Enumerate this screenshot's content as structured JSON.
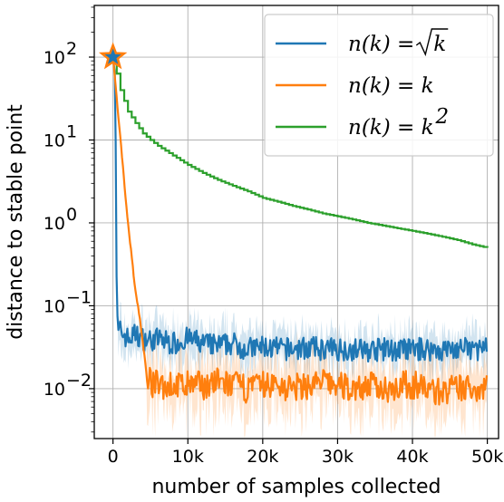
{
  "chart_data": {
    "type": "line",
    "xlabel": "number of samples collected",
    "ylabel": "distance to stable point",
    "yscale": "log",
    "xlim": [
      -2500,
      51500
    ],
    "ylim": [
      0.0025,
      420
    ],
    "grid": true,
    "legend_position": "top-right",
    "x_ticks": [
      0,
      10000,
      20000,
      30000,
      40000,
      50000
    ],
    "x_tick_labels": [
      "0",
      "10k",
      "20k",
      "30k",
      "40k",
      "50k"
    ],
    "y_ticks": [
      0.01,
      0.1,
      1,
      10,
      100
    ],
    "y_tick_labels": [
      "10",
      "10",
      "10",
      "10",
      "10"
    ],
    "y_tick_exponents": [
      "−2",
      "−1",
      "0",
      "1",
      "2"
    ],
    "start_marker": {
      "x": 0,
      "y": 100,
      "shape": "star"
    },
    "series": [
      {
        "name_prefix": "n(k) = ",
        "name_radical": "k",
        "color": "#1f77b4",
        "points": [
          [
            0,
            100
          ],
          [
            300,
            60
          ],
          [
            500,
            0.12
          ],
          [
            700,
            0.045
          ],
          [
            1000,
            0.05
          ],
          [
            2000,
            0.04
          ],
          [
            3000,
            0.045
          ],
          [
            4000,
            0.04
          ],
          [
            5000,
            0.038
          ],
          [
            6000,
            0.04
          ],
          [
            8000,
            0.035
          ],
          [
            10000,
            0.04
          ],
          [
            12000,
            0.035
          ],
          [
            14000,
            0.033
          ],
          [
            16000,
            0.035
          ],
          [
            18000,
            0.03
          ],
          [
            20000,
            0.032
          ],
          [
            22000,
            0.03
          ],
          [
            24000,
            0.03
          ],
          [
            26000,
            0.031
          ],
          [
            28000,
            0.03
          ],
          [
            30000,
            0.03
          ],
          [
            32000,
            0.03
          ],
          [
            34000,
            0.029
          ],
          [
            36000,
            0.03
          ],
          [
            38000,
            0.029
          ],
          [
            40000,
            0.03
          ],
          [
            42000,
            0.03
          ],
          [
            44000,
            0.029
          ],
          [
            46000,
            0.03
          ],
          [
            48000,
            0.03
          ],
          [
            50000,
            0.03
          ]
        ]
      },
      {
        "name": "n(k) = k",
        "color": "#ff7f0e",
        "points": [
          [
            0,
            100
          ],
          [
            1000,
            10
          ],
          [
            2000,
            1
          ],
          [
            3000,
            0.15
          ],
          [
            3500,
            0.08
          ],
          [
            4000,
            0.035
          ],
          [
            4500,
            0.015
          ],
          [
            5000,
            0.012
          ],
          [
            6000,
            0.011
          ],
          [
            8000,
            0.011
          ],
          [
            10000,
            0.011
          ],
          [
            12000,
            0.011
          ],
          [
            14000,
            0.012
          ],
          [
            16000,
            0.011
          ],
          [
            18000,
            0.01
          ],
          [
            20000,
            0.011
          ],
          [
            22000,
            0.011
          ],
          [
            24000,
            0.01
          ],
          [
            26000,
            0.011
          ],
          [
            28000,
            0.012
          ],
          [
            30000,
            0.011
          ],
          [
            32000,
            0.01
          ],
          [
            34000,
            0.011
          ],
          [
            36000,
            0.01
          ],
          [
            38000,
            0.011
          ],
          [
            40000,
            0.011
          ],
          [
            42000,
            0.01
          ],
          [
            44000,
            0.009
          ],
          [
            46000,
            0.01
          ],
          [
            48000,
            0.01
          ],
          [
            50000,
            0.011
          ]
        ]
      },
      {
        "name_prefix": "n(k) = k",
        "name_exponent": "2",
        "color": "#2ca02c",
        "points": [
          [
            0,
            100
          ],
          [
            1000,
            40
          ],
          [
            2000,
            22
          ],
          [
            3000,
            16
          ],
          [
            4000,
            12
          ],
          [
            5000,
            10
          ],
          [
            6000,
            8.5
          ],
          [
            8000,
            6.5
          ],
          [
            10000,
            5
          ],
          [
            12000,
            4
          ],
          [
            14000,
            3.3
          ],
          [
            16000,
            2.8
          ],
          [
            18000,
            2.4
          ],
          [
            20000,
            2
          ],
          [
            22000,
            1.8
          ],
          [
            24000,
            1.6
          ],
          [
            26000,
            1.45
          ],
          [
            28000,
            1.3
          ],
          [
            30000,
            1.2
          ],
          [
            32000,
            1.1
          ],
          [
            34000,
            1
          ],
          [
            36000,
            0.93
          ],
          [
            38000,
            0.86
          ],
          [
            40000,
            0.8
          ],
          [
            42000,
            0.74
          ],
          [
            44000,
            0.68
          ],
          [
            46000,
            0.62
          ],
          [
            48000,
            0.55
          ],
          [
            50000,
            0.5
          ]
        ]
      }
    ]
  }
}
